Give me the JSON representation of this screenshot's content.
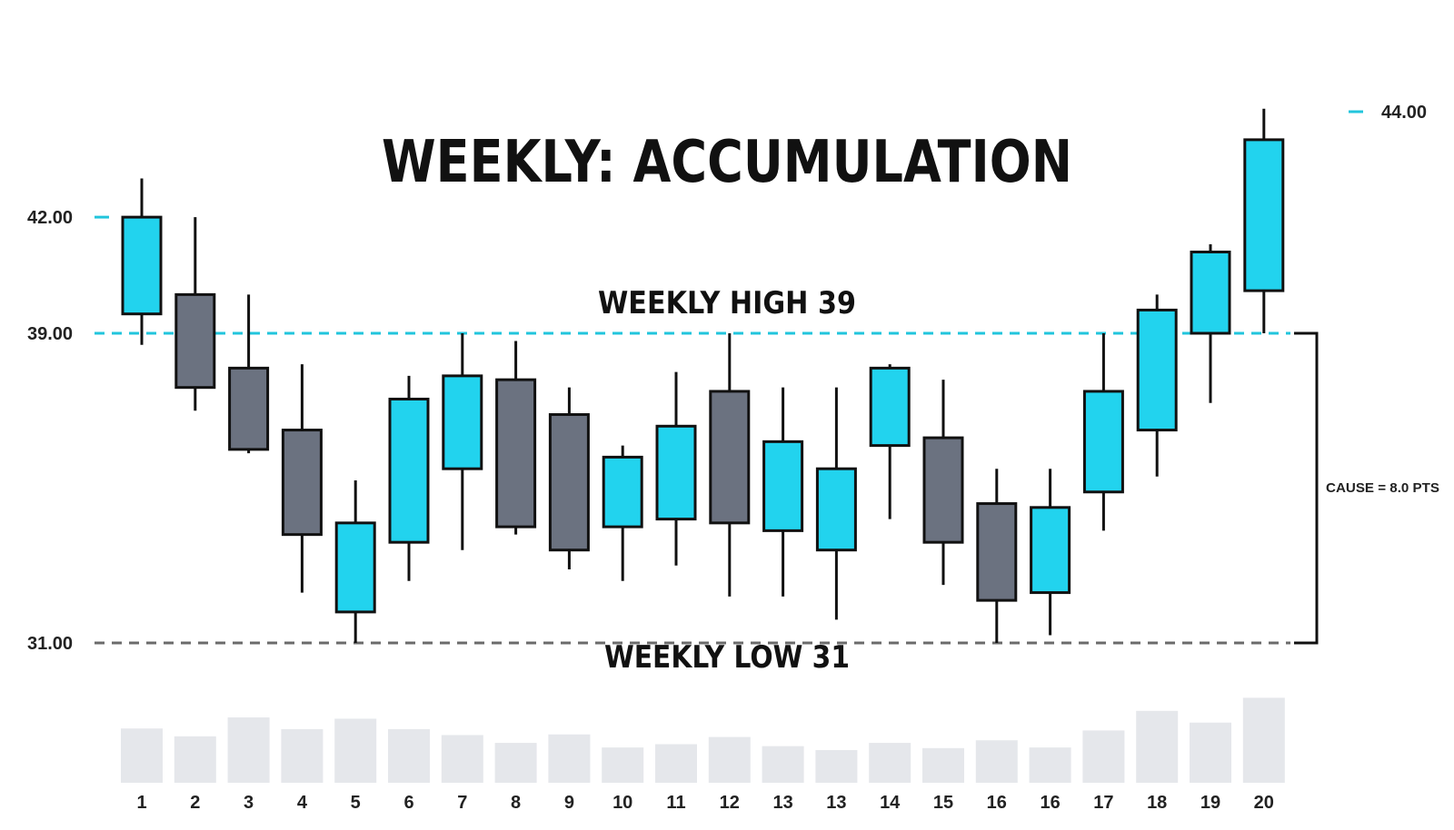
{
  "chart_data": {
    "type": "candlestick",
    "title": "WEEKLY: ACCUMULATION",
    "y_ticks": [
      {
        "value": 42,
        "label": "42.00"
      },
      {
        "value": 39,
        "label": "39.00"
      },
      {
        "value": 31,
        "label": "31.00"
      }
    ],
    "right_marker": {
      "value": 44,
      "label": "44.00"
    },
    "levels": {
      "high": {
        "value": 39,
        "label": "WEEKLY HIGH 39"
      },
      "low": {
        "value": 31,
        "label": "WEEKLY LOW 31"
      }
    },
    "cause_label": "CAUSE = 8.0 PTS",
    "colors": {
      "up": "#22d3ee",
      "down": "#6b7280",
      "high_line": "#22c5dc",
      "low_line": "#6b6b6b",
      "volume": "#e5e7eb",
      "outline": "#111111"
    },
    "x_labels": [
      "1",
      "2",
      "3",
      "4",
      "5",
      "6",
      "7",
      "8",
      "9",
      "10",
      "11",
      "12",
      "13",
      "13",
      "14",
      "15",
      "16",
      "16",
      "17",
      "18",
      "19",
      "20"
    ],
    "candles": [
      {
        "open": 39.5,
        "high": 43.0,
        "low": 38.7,
        "close": 42.0,
        "dir": "up"
      },
      {
        "open": 40.0,
        "high": 42.0,
        "low": 37.0,
        "close": 37.6,
        "dir": "down"
      },
      {
        "open": 38.1,
        "high": 40.0,
        "low": 35.9,
        "close": 36.0,
        "dir": "down"
      },
      {
        "open": 36.5,
        "high": 38.2,
        "low": 32.3,
        "close": 33.8,
        "dir": "down"
      },
      {
        "open": 31.8,
        "high": 35.2,
        "low": 31.0,
        "close": 34.1,
        "dir": "up"
      },
      {
        "open": 33.6,
        "high": 37.9,
        "low": 32.6,
        "close": 37.3,
        "dir": "up"
      },
      {
        "open": 35.5,
        "high": 39.0,
        "low": 33.4,
        "close": 37.9,
        "dir": "up"
      },
      {
        "open": 37.8,
        "high": 38.8,
        "low": 33.8,
        "close": 34.0,
        "dir": "down"
      },
      {
        "open": 36.9,
        "high": 37.6,
        "low": 32.9,
        "close": 33.4,
        "dir": "down"
      },
      {
        "open": 34.0,
        "high": 36.1,
        "low": 32.6,
        "close": 35.8,
        "dir": "up"
      },
      {
        "open": 34.2,
        "high": 38.0,
        "low": 33.0,
        "close": 36.6,
        "dir": "up"
      },
      {
        "open": 37.5,
        "high": 39.0,
        "low": 32.2,
        "close": 34.1,
        "dir": "down"
      },
      {
        "open": 33.9,
        "high": 37.6,
        "low": 32.2,
        "close": 36.2,
        "dir": "up"
      },
      {
        "open": 33.4,
        "high": 37.6,
        "low": 31.6,
        "close": 35.5,
        "dir": "up"
      },
      {
        "open": 36.1,
        "high": 38.2,
        "low": 34.2,
        "close": 38.1,
        "dir": "up"
      },
      {
        "open": 36.3,
        "high": 37.8,
        "low": 32.5,
        "close": 33.6,
        "dir": "down"
      },
      {
        "open": 34.6,
        "high": 35.5,
        "low": 31.0,
        "close": 32.1,
        "dir": "down"
      },
      {
        "open": 32.3,
        "high": 35.5,
        "low": 31.2,
        "close": 34.5,
        "dir": "up"
      },
      {
        "open": 34.9,
        "high": 39.0,
        "low": 33.9,
        "close": 37.5,
        "dir": "up"
      },
      {
        "open": 36.5,
        "high": 40.0,
        "low": 35.3,
        "close": 39.6,
        "dir": "up"
      },
      {
        "open": 39.0,
        "high": 41.3,
        "low": 37.2,
        "close": 41.1,
        "dir": "up"
      },
      {
        "open": 40.1,
        "high": 44.8,
        "low": 39.0,
        "close": 44.0,
        "dir": "up"
      }
    ],
    "volume": [
      0.83,
      0.71,
      1.0,
      0.82,
      0.98,
      0.82,
      0.73,
      0.61,
      0.74,
      0.54,
      0.59,
      0.7,
      0.56,
      0.5,
      0.61,
      0.53,
      0.65,
      0.54,
      0.8,
      1.1,
      0.92,
      1.3
    ]
  }
}
